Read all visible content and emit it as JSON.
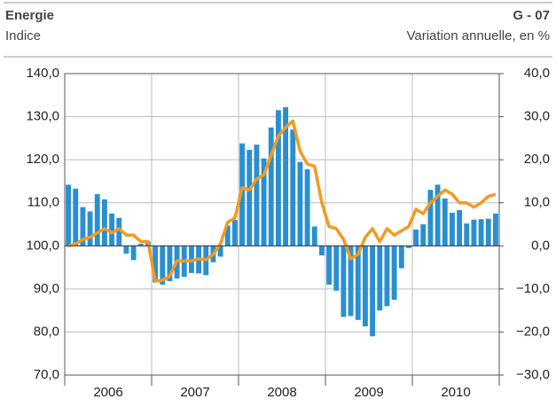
{
  "chart_data": {
    "type": "bar_line",
    "title": "Energie",
    "code": "G - 07",
    "y_axis_label": "Indice",
    "y2_axis_label": "Variation annuelle, en %",
    "year_labels": [
      "2006",
      "2007",
      "2008",
      "2009",
      "2010"
    ],
    "ylim": [
      70,
      140
    ],
    "yticks": [
      {
        "value": 70,
        "label": "70,0"
      },
      {
        "value": 80,
        "label": "80,0"
      },
      {
        "value": 90,
        "label": "90,0"
      },
      {
        "value": 100,
        "label": "100,0"
      },
      {
        "value": 110,
        "label": "110,0"
      },
      {
        "value": 120,
        "label": "120,0"
      },
      {
        "value": 130,
        "label": "130,0"
      },
      {
        "value": 140,
        "label": "140,0"
      }
    ],
    "y2lim": [
      -30,
      40
    ],
    "y2ticks": [
      {
        "value": -30,
        "label": "−30,0"
      },
      {
        "value": -20,
        "label": "−20,0"
      },
      {
        "value": -10,
        "label": "−10,0"
      },
      {
        "value": 0,
        "label": "0,0"
      },
      {
        "value": 10,
        "label": "10,0"
      },
      {
        "value": 20,
        "label": "20,0"
      },
      {
        "value": 30,
        "label": "30,0"
      },
      {
        "value": 40,
        "label": "40,0"
      }
    ],
    "grid": true,
    "series": [
      {
        "kind": "bar",
        "axis": "y2",
        "color": "#2a8fd1",
        "values": [
          14.2,
          13.3,
          9,
          8,
          12,
          10.8,
          7.5,
          6.5,
          -1.8,
          -3.3,
          0.5,
          1,
          -8.5,
          -9,
          -8.2,
          -7.6,
          -7.2,
          -6.3,
          -6.4,
          -6.8,
          -3.8,
          -2.5,
          4.7,
          6,
          23.8,
          22.3,
          23.5,
          20.3,
          27.5,
          31.5,
          32.2,
          27,
          19.5,
          17.8,
          4.5,
          -2.2,
          -9,
          -10.4,
          -16.5,
          -16.3,
          -17.2,
          -18.7,
          -21,
          -15,
          -14,
          -12.5,
          -5.2,
          -0.5,
          3.8,
          5,
          13,
          14.2,
          11,
          7.7,
          8.3,
          5.2,
          6.1,
          6.2,
          6.3,
          7.5
        ]
      },
      {
        "kind": "line",
        "axis": "y",
        "color": "#f39a1e",
        "values": [
          100,
          100.5,
          101.5,
          102,
          103,
          104,
          103,
          104,
          102.5,
          102.5,
          101,
          101,
          91.8,
          92,
          93,
          96.5,
          96.5,
          96.5,
          97,
          96.8,
          98,
          100.5,
          105.5,
          106.5,
          113.5,
          113,
          115.5,
          116.5,
          121,
          125.5,
          127.5,
          129,
          122,
          119,
          118.5,
          110,
          104.5,
          104,
          101.5,
          97,
          98,
          102,
          104,
          101,
          104,
          102.5,
          103.5,
          104.5,
          108.5,
          107.5,
          110,
          111.5,
          113,
          112,
          110,
          110,
          109,
          110,
          111.5,
          112
        ]
      }
    ]
  }
}
